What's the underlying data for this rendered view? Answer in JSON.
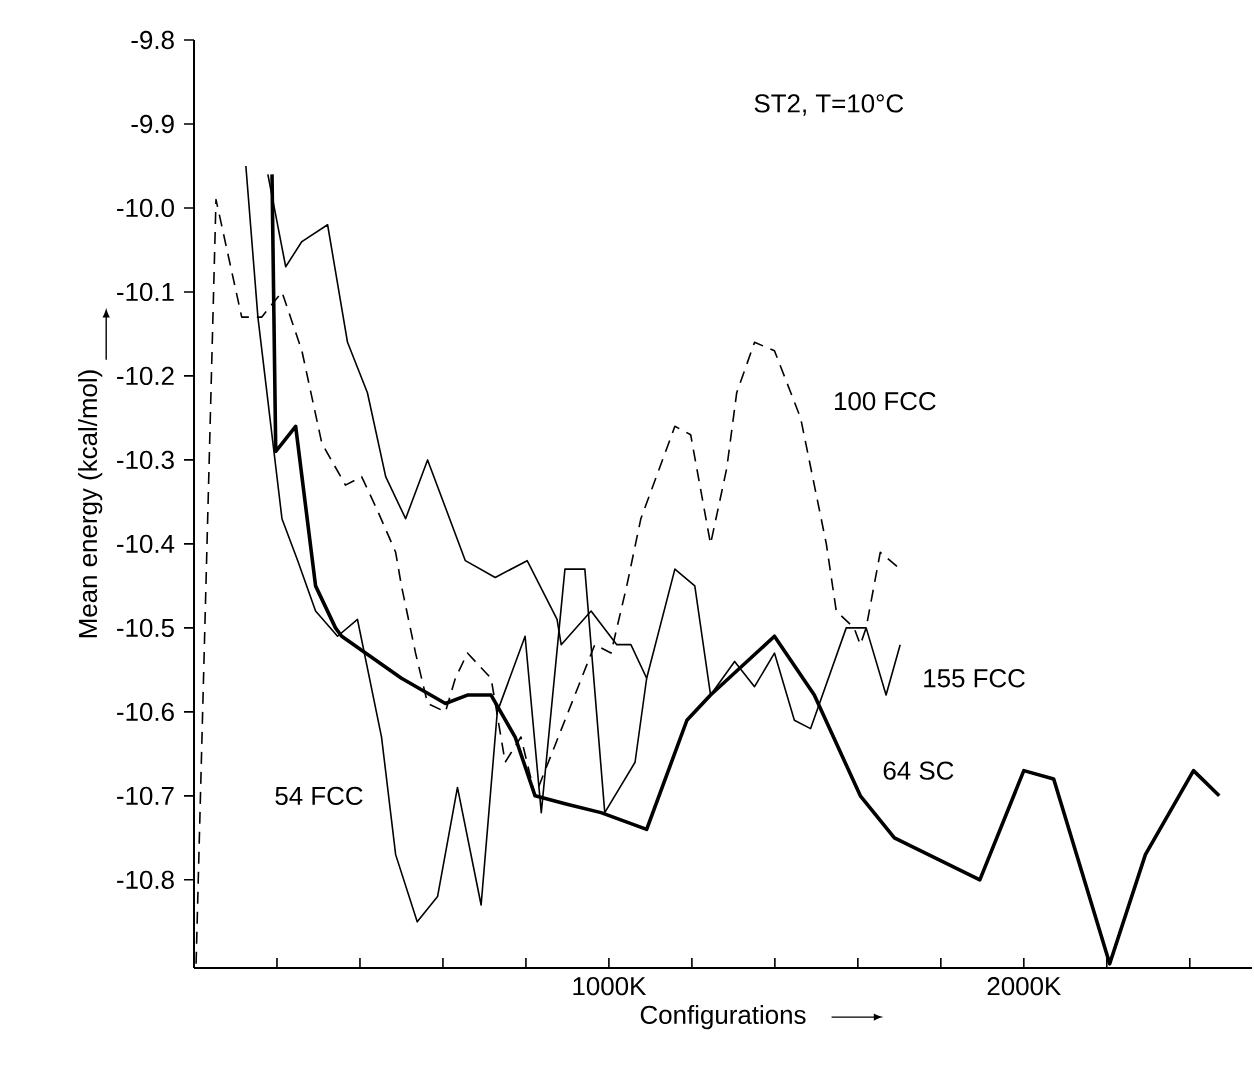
{
  "chart_data": {
    "type": "line",
    "xlabel": "Configurations",
    "ylabel": "Mean energy (kcal/mol)",
    "annotations": [
      "ST2, T=10°C"
    ],
    "xlim": [
      0,
      2550
    ],
    "ylim": [
      -10.905,
      -9.8
    ],
    "xticks": [
      {
        "value": 200,
        "label": null
      },
      {
        "value": 400,
        "label": null
      },
      {
        "value": 600,
        "label": null
      },
      {
        "value": 800,
        "label": null
      },
      {
        "value": 1000,
        "label": "1000K"
      },
      {
        "value": 1200,
        "label": null
      },
      {
        "value": 1400,
        "label": null
      },
      {
        "value": 1600,
        "label": null
      },
      {
        "value": 1800,
        "label": null
      },
      {
        "value": 2000,
        "label": "2000K"
      },
      {
        "value": 2200,
        "label": null
      },
      {
        "value": 2400,
        "label": null
      }
    ],
    "yticks": [
      -9.8,
      -9.9,
      {
        "value": -10.0,
        "label": "-10.0"
      },
      -10.1,
      -10.2,
      -10.3,
      -10.4,
      -10.5,
      -10.6,
      -10.7,
      -10.8
    ],
    "grid": false,
    "legend": false,
    "marker": "none",
    "series": [
      {
        "name": "100 FCC",
        "color": "#000000",
        "line_style": "dashed",
        "x": [
          5,
          53,
          115,
          163,
          212,
          260,
          308,
          365,
          404,
          442,
          486,
          500,
          534,
          563,
          606,
          630,
          659,
          716,
          750,
          788,
          822,
          870,
          918,
          966,
          1005,
          1043,
          1077,
          1159,
          1197,
          1245,
          1284,
          1308,
          1351,
          1399,
          1462,
          1524,
          1548,
          1591,
          1606,
          1620,
          1654,
          1702
        ],
        "values": [
          -10.9,
          -9.99,
          -10.13,
          -10.13,
          -10.1,
          -10.17,
          -10.28,
          -10.33,
          -10.32,
          -10.36,
          -10.41,
          -10.45,
          -10.53,
          -10.59,
          -10.6,
          -10.56,
          -10.53,
          -10.56,
          -10.66,
          -10.63,
          -10.7,
          -10.64,
          -10.58,
          -10.52,
          -10.53,
          -10.45,
          -10.37,
          -10.26,
          -10.27,
          -10.4,
          -10.31,
          -10.22,
          -10.16,
          -10.17,
          -10.25,
          -10.4,
          -10.48,
          -10.5,
          -10.52,
          -10.5,
          -10.41,
          -10.43
        ]
      },
      {
        "name": "155 FCC",
        "color": "#000000",
        "line_style": "solid",
        "x": [
          178,
          221,
          260,
          322,
          370,
          418,
          462,
          510,
          563,
          654,
          726,
          803,
          875,
          885,
          957,
          1019,
          1053,
          1091,
          1159,
          1207,
          1245,
          1303,
          1351,
          1399,
          1447,
          1486,
          1572,
          1620,
          1668,
          1702
        ],
        "values": [
          -9.96,
          -10.07,
          -10.04,
          -10.02,
          -10.16,
          -10.22,
          -10.32,
          -10.37,
          -10.3,
          -10.42,
          -10.44,
          -10.42,
          -10.49,
          -10.52,
          -10.48,
          -10.52,
          -10.52,
          -10.56,
          -10.43,
          -10.45,
          -10.58,
          -10.54,
          -10.57,
          -10.53,
          -10.61,
          -10.62,
          -10.5,
          -10.5,
          -10.58,
          -10.52
        ]
      },
      {
        "name": "54 FCC",
        "color": "#000000",
        "line_style": "solid",
        "x": [
          125,
          154,
          212,
          250,
          293,
          346,
          394,
          452,
          486,
          538,
          587,
          635,
          692,
          731,
          798,
          837,
          894,
          942,
          990,
          1063,
          1091
        ],
        "values": [
          -9.95,
          -10.13,
          -10.37,
          -10.42,
          -10.48,
          -10.51,
          -10.49,
          -10.63,
          -10.77,
          -10.85,
          -10.82,
          -10.69,
          -10.83,
          -10.6,
          -10.51,
          -10.72,
          -10.43,
          -10.43,
          -10.72,
          -10.66,
          -10.56
        ]
      },
      {
        "name": "64 SC",
        "color": "#000000",
        "line_style": "solid",
        "x": [
          188,
          197,
          245,
          293,
          341,
          356,
          500,
          606,
          659,
          716,
          774,
          822,
          899,
          981,
          1091,
          1188,
          1245,
          1399,
          1495,
          1606,
          1688,
          1894,
          2000,
          2072,
          2207,
          2293,
          2409,
          2471
        ],
        "values": [
          -9.96,
          -10.29,
          -10.26,
          -10.45,
          -10.5,
          -10.51,
          -10.56,
          -10.59,
          -10.58,
          -10.58,
          -10.63,
          -10.7,
          -10.71,
          -10.72,
          -10.74,
          -10.61,
          -10.58,
          -10.51,
          -10.58,
          -10.7,
          -10.75,
          -10.8,
          -10.67,
          -10.68,
          -10.9,
          -10.77,
          -10.67,
          -10.7
        ]
      }
    ]
  }
}
